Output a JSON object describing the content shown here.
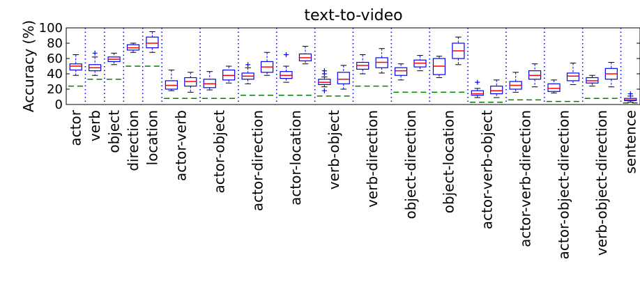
{
  "chart_data": {
    "type": "box",
    "title": "text-to-video",
    "ylabel": "Accuracy (%)",
    "ylim": [
      0,
      100
    ],
    "yticks": [
      "0",
      "20",
      "40",
      "60",
      "80",
      "100"
    ],
    "colors": {
      "box": "#0000ff",
      "median": "#ff0000",
      "chance": "#007f00",
      "divider": "#0000ff",
      "outlier": "#0000ff"
    },
    "groups": [
      {
        "label": "actor",
        "chance": 24,
        "boxes": [
          {
            "whislo": 38,
            "q1": 45,
            "med": 50,
            "q3": 53,
            "whishi": 65,
            "fliers": []
          }
        ]
      },
      {
        "label": "verb",
        "chance": 33,
        "boxes": [
          {
            "whislo": 38,
            "q1": 44,
            "med": 48,
            "q3": 52,
            "whishi": 62,
            "fliers": [
              67
            ]
          }
        ]
      },
      {
        "label": "object",
        "chance": 33,
        "boxes": [
          {
            "whislo": 52,
            "q1": 56,
            "med": 59,
            "q3": 62,
            "whishi": 67,
            "fliers": []
          }
        ]
      },
      {
        "label": "direction",
        "chance": 50,
        "boxes": [
          {
            "whislo": 68,
            "q1": 71,
            "med": 74,
            "q3": 78,
            "whishi": 80,
            "fliers": []
          }
        ]
      },
      {
        "label": "location",
        "chance": 50,
        "boxes": [
          {
            "whislo": 68,
            "q1": 74,
            "med": 80,
            "q3": 88,
            "whishi": 95,
            "fliers": []
          }
        ]
      },
      {
        "label": "actor-verb",
        "chance": 8,
        "boxes": [
          {
            "whislo": 18,
            "q1": 20,
            "med": 25,
            "q3": 31,
            "whishi": 45,
            "fliers": []
          },
          {
            "whislo": 16,
            "q1": 24,
            "med": 30,
            "q3": 35,
            "whishi": 42,
            "fliers": []
          }
        ]
      },
      {
        "label": "actor-object",
        "chance": 8,
        "boxes": [
          {
            "whislo": 19,
            "q1": 22,
            "med": 27,
            "q3": 33,
            "whishi": 43,
            "fliers": []
          },
          {
            "whislo": 28,
            "q1": 32,
            "med": 38,
            "q3": 45,
            "whishi": 50,
            "fliers": []
          }
        ]
      },
      {
        "label": "actor-direction",
        "chance": 12,
        "boxes": [
          {
            "whislo": 27,
            "q1": 33,
            "med": 37,
            "q3": 41,
            "whishi": 48,
            "fliers": [
              52
            ]
          },
          {
            "whislo": 38,
            "q1": 42,
            "med": 49,
            "q3": 56,
            "whishi": 68,
            "fliers": []
          }
        ]
      },
      {
        "label": "actor-location",
        "chance": 12,
        "boxes": [
          {
            "whislo": 29,
            "q1": 34,
            "med": 38,
            "q3": 43,
            "whishi": 50,
            "fliers": [
              65
            ]
          },
          {
            "whislo": 53,
            "q1": 57,
            "med": 61,
            "q3": 66,
            "whishi": 76,
            "fliers": []
          }
        ]
      },
      {
        "label": "verb-object",
        "chance": 11,
        "boxes": [
          {
            "whislo": 23,
            "q1": 26,
            "med": 29,
            "q3": 33,
            "whishi": 36,
            "fliers": [
              44,
              40,
              18
            ]
          },
          {
            "whislo": 20,
            "q1": 27,
            "med": 33,
            "q3": 42,
            "whishi": 51,
            "fliers": []
          }
        ]
      },
      {
        "label": "verb-direction",
        "chance": 24,
        "boxes": [
          {
            "whislo": 40,
            "q1": 46,
            "med": 51,
            "q3": 55,
            "whishi": 65,
            "fliers": []
          },
          {
            "whislo": 41,
            "q1": 48,
            "med": 55,
            "q3": 61,
            "whishi": 73,
            "fliers": []
          }
        ]
      },
      {
        "label": "object-direction",
        "chance": 16,
        "boxes": [
          {
            "whislo": 32,
            "q1": 38,
            "med": 44,
            "q3": 48,
            "whishi": 53,
            "fliers": []
          },
          {
            "whislo": 44,
            "q1": 49,
            "med": 54,
            "q3": 58,
            "whishi": 64,
            "fliers": []
          }
        ]
      },
      {
        "label": "object-location",
        "chance": 16,
        "boxes": [
          {
            "whislo": 35,
            "q1": 39,
            "med": 50,
            "q3": 60,
            "whishi": 63,
            "fliers": []
          },
          {
            "whislo": 52,
            "q1": 60,
            "med": 70,
            "q3": 80,
            "whishi": 88,
            "fliers": []
          }
        ]
      },
      {
        "label": "actor-verb-object",
        "chance": 3,
        "boxes": [
          {
            "whislo": 9,
            "q1": 12,
            "med": 14,
            "q3": 18,
            "whishi": 21,
            "fliers": [
              29
            ]
          },
          {
            "whislo": 9,
            "q1": 14,
            "med": 18,
            "q3": 24,
            "whishi": 32,
            "fliers": []
          }
        ]
      },
      {
        "label": "actor-verb-direction",
        "chance": 6,
        "boxes": [
          {
            "whislo": 16,
            "q1": 20,
            "med": 25,
            "q3": 30,
            "whishi": 42,
            "fliers": []
          },
          {
            "whislo": 23,
            "q1": 33,
            "med": 38,
            "q3": 44,
            "whishi": 53,
            "fliers": []
          }
        ]
      },
      {
        "label": "actor-object-direction",
        "chance": 4,
        "boxes": [
          {
            "whislo": 15,
            "q1": 17,
            "med": 21,
            "q3": 27,
            "whishi": 32,
            "fliers": []
          },
          {
            "whislo": 26,
            "q1": 31,
            "med": 37,
            "q3": 41,
            "whishi": 54,
            "fliers": []
          }
        ]
      },
      {
        "label": "verb-object-direction",
        "chance": 8,
        "boxes": [
          {
            "whislo": 24,
            "q1": 28,
            "med": 31,
            "q3": 35,
            "whishi": 38,
            "fliers": []
          },
          {
            "whislo": 23,
            "q1": 33,
            "med": 40,
            "q3": 47,
            "whishi": 55,
            "fliers": []
          }
        ]
      },
      {
        "label": "sentence",
        "chance": 2,
        "boxes": [
          {
            "whislo": 3,
            "q1": 5,
            "med": 6,
            "q3": 8,
            "whishi": 11,
            "fliers": [
              14
            ]
          }
        ]
      }
    ]
  }
}
